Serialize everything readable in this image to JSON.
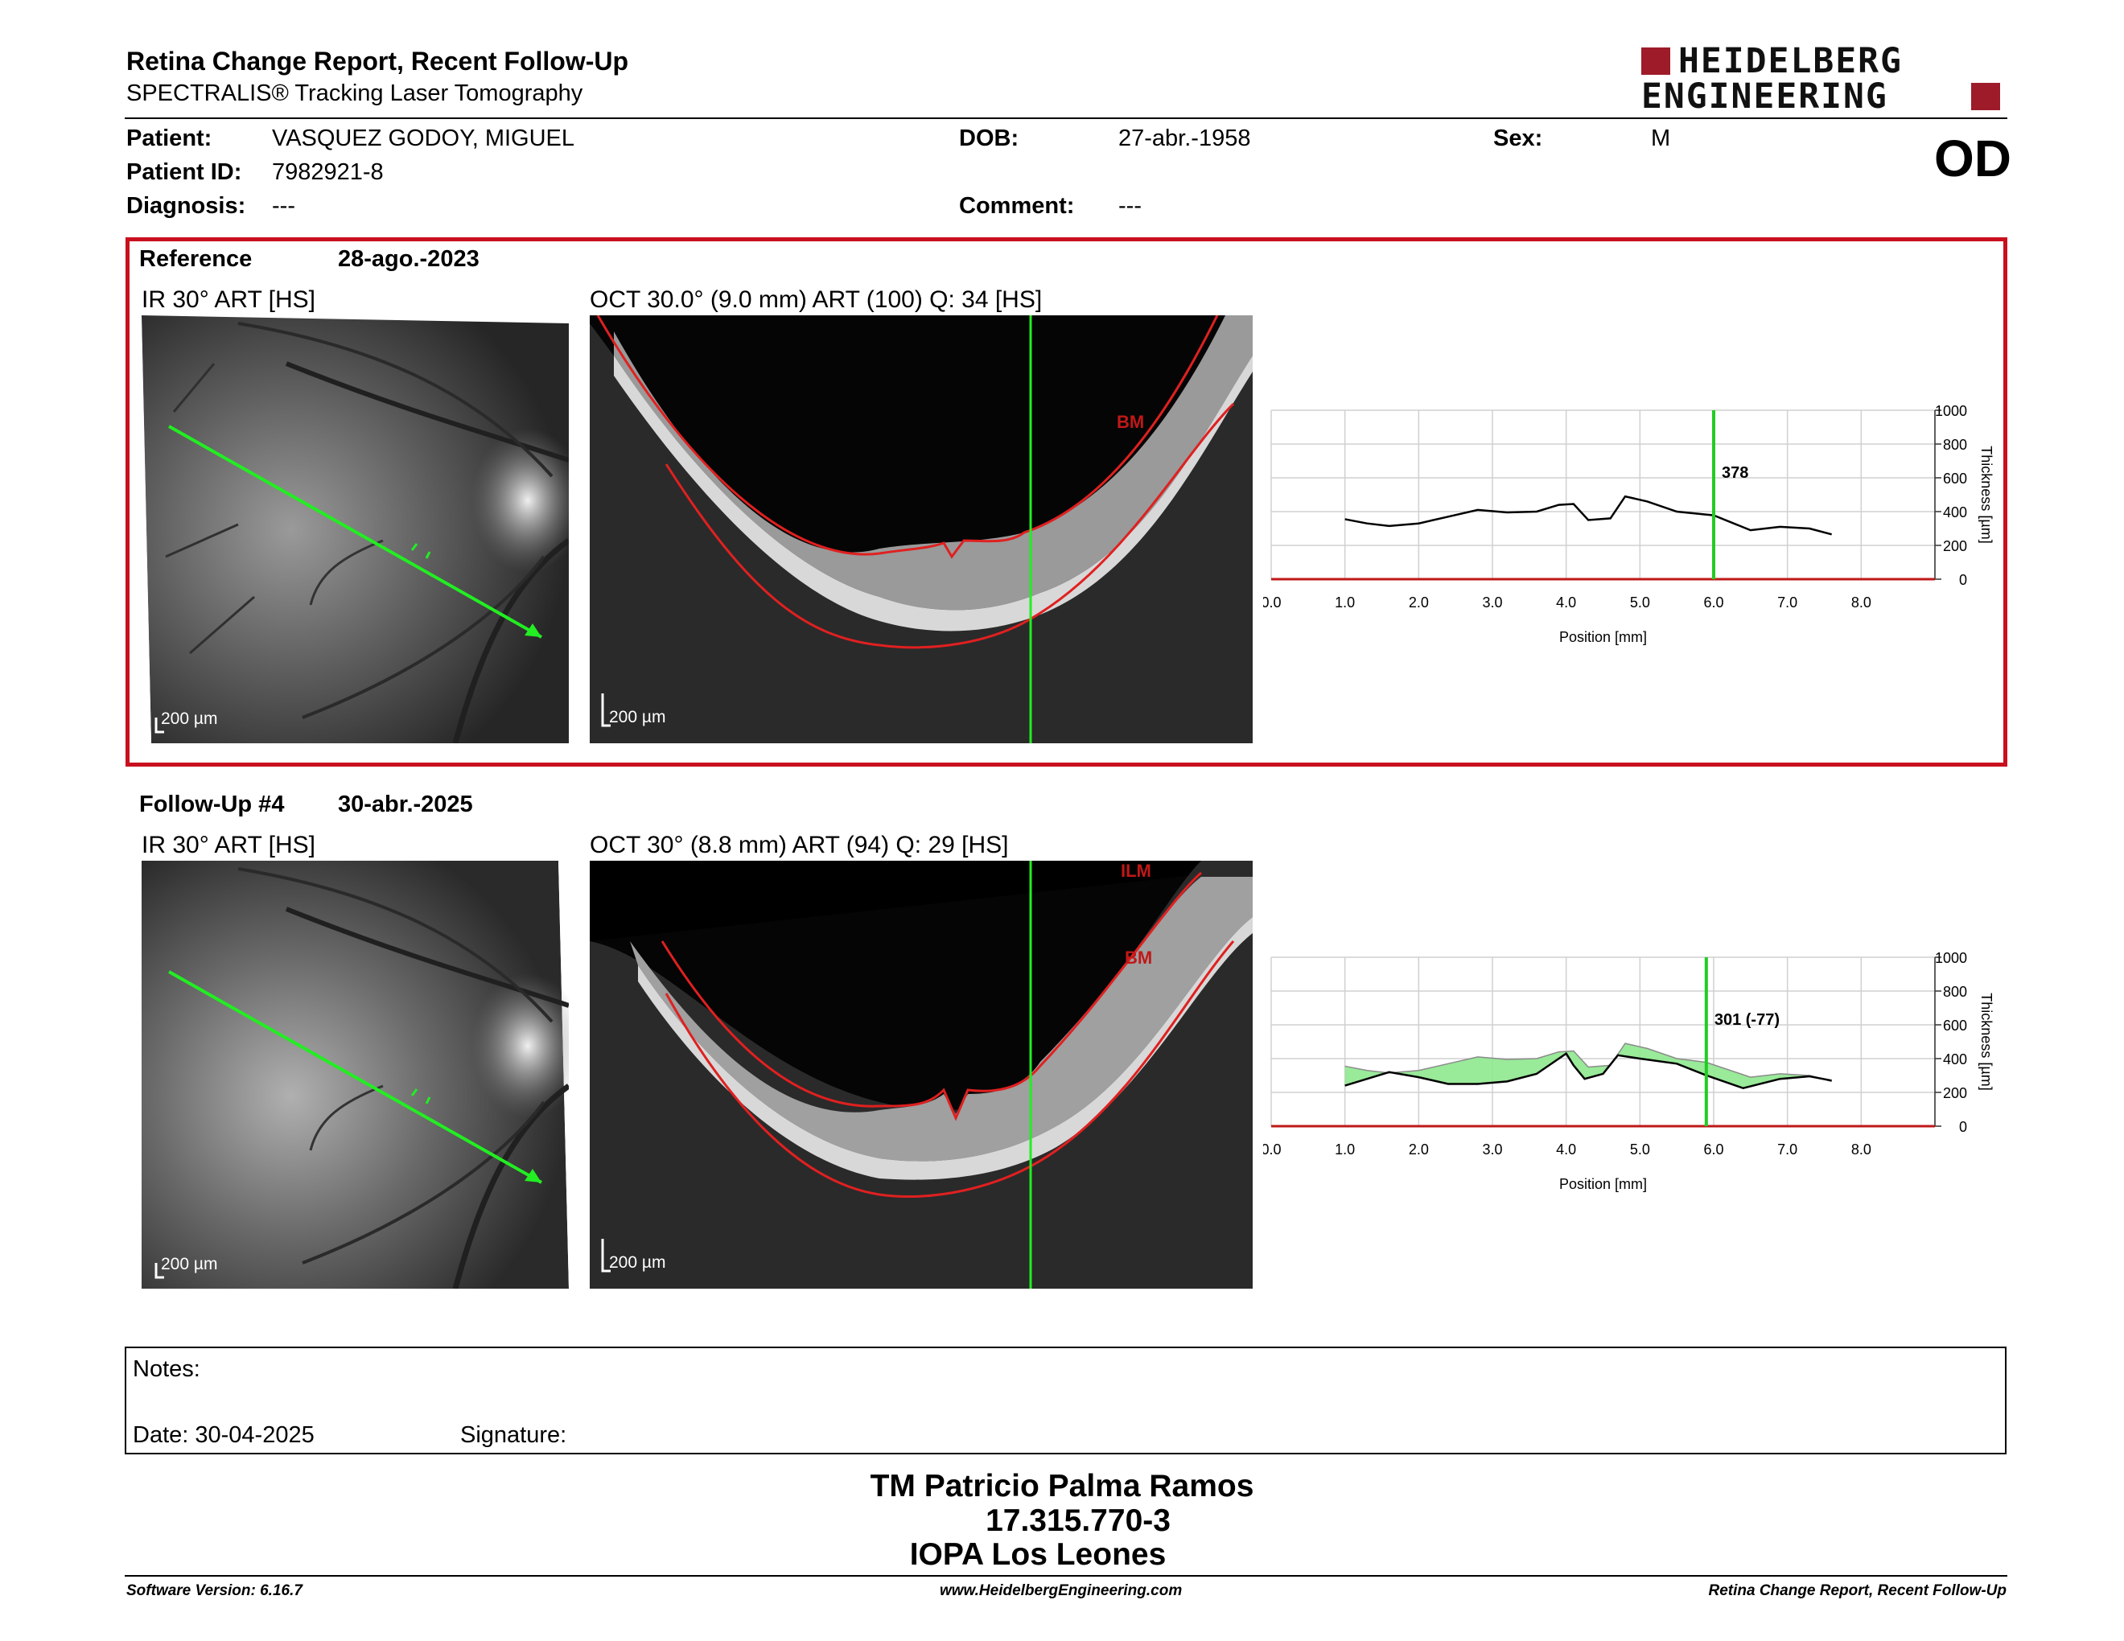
{
  "header": {
    "title": "Retina Change Report, Recent Follow-Up",
    "subtitle": "SPECTRALIS® Tracking Laser Tomography",
    "logo_line1": "HEIDELBERG",
    "logo_line2": "ENGINEERING",
    "eye": "OD"
  },
  "patient": {
    "patient_label": "Patient:",
    "patient_value": "VASQUEZ GODOY, MIGUEL",
    "id_label": "Patient ID:",
    "id_value": "7982921-8",
    "diagnosis_label": "Diagnosis:",
    "diagnosis_value": "---",
    "dob_label": "DOB:",
    "dob_value": "27-abr.-1958",
    "comment_label": "Comment:",
    "comment_value": "---",
    "sex_label": "Sex:",
    "sex_value": "M"
  },
  "reference": {
    "label": "Reference",
    "date": "28-ago.-2023",
    "ir_label": "IR 30° ART [HS]",
    "oct_label": "OCT 30.0° (9.0 mm) ART (100) Q: 34 [HS]",
    "scale_ir": "200 µm",
    "scale_oct": "200 µm",
    "tag_bm": "BM"
  },
  "followup": {
    "label": "Follow-Up #4",
    "date": "30-abr.-2025",
    "ir_label": "IR 30° ART [HS]",
    "oct_label": "OCT 30° (8.8 mm) ART (94) Q: 29 [HS]",
    "scale_ir": "200 µm",
    "scale_oct": "200 µm",
    "tag_ilm": "ILM",
    "tag_bm": "BM"
  },
  "chart_data": [
    {
      "type": "line",
      "xlabel": "Position [mm]",
      "ylabel": "Thickness [µm]",
      "xlim": [
        0,
        9
      ],
      "ylim": [
        0,
        1000
      ],
      "xticks": [
        "0.0",
        "1.0",
        "2.0",
        "3.0",
        "4.0",
        "5.0",
        "6.0",
        "7.0",
        "8.0"
      ],
      "yticks": [
        "0",
        "200",
        "400",
        "600",
        "800",
        "1000"
      ],
      "marker": {
        "x": 6.0,
        "label": "378"
      },
      "grid": true,
      "series": [
        {
          "values_x": [
            1.0,
            1.3,
            1.6,
            2.0,
            2.4,
            2.8,
            3.2,
            3.6,
            3.9,
            4.1,
            4.3,
            4.6,
            4.8,
            5.1,
            5.5,
            6.0,
            6.5,
            6.9,
            7.3,
            7.6
          ],
          "values_y": [
            355,
            330,
            315,
            330,
            370,
            410,
            395,
            400,
            440,
            445,
            350,
            360,
            490,
            460,
            400,
            378,
            290,
            310,
            300,
            265
          ]
        }
      ]
    },
    {
      "type": "area",
      "xlabel": "Position [mm]",
      "ylabel": "Thickness [µm]",
      "xlim": [
        0,
        9
      ],
      "ylim": [
        0,
        1000
      ],
      "xticks": [
        "0.0",
        "1.0",
        "2.0",
        "3.0",
        "4.0",
        "5.0",
        "6.0",
        "7.0",
        "8.0"
      ],
      "yticks": [
        "0",
        "200",
        "400",
        "600",
        "800",
        "1000"
      ],
      "marker": {
        "x": 5.9,
        "label": "301 (-77)"
      },
      "grid": true,
      "series": [
        {
          "values_x": [
            1.0,
            1.3,
            1.6,
            2.0,
            2.4,
            2.8,
            3.2,
            3.6,
            3.9,
            4.1,
            4.3,
            4.6,
            4.8,
            5.1,
            5.5,
            5.9,
            6.5,
            6.9,
            7.3,
            7.6
          ],
          "values_y": [
            355,
            330,
            315,
            330,
            370,
            410,
            395,
            400,
            440,
            445,
            350,
            360,
            490,
            460,
            400,
            378,
            290,
            310,
            300,
            265
          ]
        },
        {
          "values_x": [
            1.0,
            1.3,
            1.6,
            2.0,
            2.4,
            2.8,
            3.2,
            3.6,
            3.9,
            4.0,
            4.1,
            4.25,
            4.5,
            4.7,
            5.0,
            5.5,
            5.9,
            6.4,
            6.9,
            7.3,
            7.6
          ],
          "values_y": [
            240,
            280,
            320,
            290,
            250,
            250,
            265,
            310,
            400,
            430,
            360,
            280,
            310,
            420,
            400,
            370,
            301,
            225,
            280,
            295,
            270
          ]
        }
      ]
    }
  ],
  "notes": {
    "notes_label": "Notes:",
    "date_label": "Date: 30-04-2025",
    "signature_label": "Signature:"
  },
  "signature": {
    "line1": "TM Patricio Palma Ramos",
    "line2": "17.315.770-3",
    "line3": "IOPA Los Leones"
  },
  "footer": {
    "left": "Software Version: 6.16.7",
    "center": "www.HeidelbergEngineering.com",
    "right": "Retina Change Report, Recent Follow-Up"
  },
  "colors": {
    "frame_red": "#c8101e",
    "logo_red": "#9e1b2a",
    "marker_green": "#22cc22",
    "segment_red": "#e02020",
    "area_green": "#8ee88e"
  }
}
